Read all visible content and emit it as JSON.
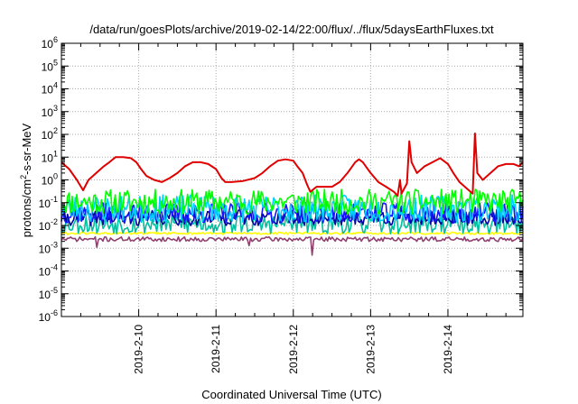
{
  "chart_data": {
    "type": "line",
    "title": "/data/run/goesPlots/archive/2019-02-14/22:00/flux/../flux/5daysEarthFluxes.txt",
    "xlabel": "Coordinated Universal Time (UTC)",
    "ylabel": "protons/cm²-s-sr-MeV",
    "ylabel_parts": [
      "protons/cm",
      "2",
      "-s-sr-MeV"
    ],
    "yscale": "log",
    "ylim": [
      1e-06,
      1000000.0
    ],
    "xlim": [
      0,
      5.97
    ],
    "grid": true,
    "y_ticks": [
      {
        "exp": -6,
        "label": "10",
        "sup": "-6"
      },
      {
        "exp": -5,
        "label": "10",
        "sup": "-5"
      },
      {
        "exp": -4,
        "label": "10",
        "sup": "-4"
      },
      {
        "exp": -3,
        "label": "10",
        "sup": "-3"
      },
      {
        "exp": -2,
        "label": "10",
        "sup": "-2"
      },
      {
        "exp": -1,
        "label": "10",
        "sup": "-1"
      },
      {
        "exp": 0,
        "label": "10",
        "sup": "0"
      },
      {
        "exp": 1,
        "label": "10",
        "sup": "1"
      },
      {
        "exp": 2,
        "label": "10",
        "sup": "2"
      },
      {
        "exp": 3,
        "label": "10",
        "sup": "3"
      },
      {
        "exp": 4,
        "label": "10",
        "sup": "4"
      },
      {
        "exp": 5,
        "label": "10",
        "sup": "5"
      },
      {
        "exp": 6,
        "label": "10",
        "sup": "6"
      }
    ],
    "x_ticks": [
      {
        "x": 1,
        "label": "2019-2-10"
      },
      {
        "x": 2,
        "label": "2019-2-11"
      },
      {
        "x": 3,
        "label": "2019-2-12"
      },
      {
        "x": 4,
        "label": "2019-2-13"
      },
      {
        "x": 5,
        "label": "2019-2-14"
      }
    ],
    "series": [
      {
        "color": "#e00000",
        "points": [
          [
            0.0,
            6
          ],
          [
            0.1,
            3
          ],
          [
            0.2,
            1.0
          ],
          [
            0.28,
            0.35
          ],
          [
            0.35,
            1.0
          ],
          [
            0.45,
            2
          ],
          [
            0.55,
            4
          ],
          [
            0.62,
            6
          ],
          [
            0.7,
            10
          ],
          [
            0.8,
            10
          ],
          [
            0.9,
            9
          ],
          [
            0.97,
            6
          ],
          [
            1.03,
            3
          ],
          [
            1.1,
            1.5
          ],
          [
            1.2,
            1.0
          ],
          [
            1.3,
            0.8
          ],
          [
            1.4,
            1.2
          ],
          [
            1.5,
            2
          ],
          [
            1.6,
            4
          ],
          [
            1.7,
            6
          ],
          [
            1.8,
            6
          ],
          [
            1.9,
            5
          ],
          [
            2.0,
            3
          ],
          [
            2.07,
            1.2
          ],
          [
            2.12,
            0.8
          ],
          [
            2.2,
            0.8
          ],
          [
            2.35,
            0.9
          ],
          [
            2.5,
            1.2
          ],
          [
            2.6,
            2
          ],
          [
            2.7,
            4
          ],
          [
            2.8,
            7
          ],
          [
            2.9,
            8
          ],
          [
            3.0,
            7
          ],
          [
            3.05,
            4
          ],
          [
            3.12,
            2
          ],
          [
            3.18,
            0.6
          ],
          [
            3.22,
            0.3
          ],
          [
            3.3,
            0.5
          ],
          [
            3.4,
            0.5
          ],
          [
            3.5,
            0.5
          ],
          [
            3.6,
            0.8
          ],
          [
            3.7,
            2
          ],
          [
            3.8,
            6
          ],
          [
            3.85,
            8
          ],
          [
            3.9,
            6
          ],
          [
            4.0,
            2
          ],
          [
            4.1,
            0.8
          ],
          [
            4.2,
            0.5
          ],
          [
            4.3,
            0.3
          ],
          [
            4.35,
            0.2
          ],
          [
            4.38,
            1.0
          ],
          [
            4.4,
            0.25
          ],
          [
            4.47,
            0.7
          ],
          [
            4.5,
            50
          ],
          [
            4.53,
            6
          ],
          [
            4.6,
            2
          ],
          [
            4.7,
            4
          ],
          [
            4.8,
            6
          ],
          [
            4.9,
            9
          ],
          [
            5.0,
            5
          ],
          [
            5.07,
            2
          ],
          [
            5.15,
            0.8
          ],
          [
            5.25,
            0.4
          ],
          [
            5.32,
            0.25
          ],
          [
            5.35,
            110
          ],
          [
            5.38,
            2
          ],
          [
            5.45,
            1.0
          ],
          [
            5.55,
            2
          ],
          [
            5.65,
            4
          ],
          [
            5.75,
            5
          ],
          [
            5.85,
            5
          ],
          [
            5.92,
            4
          ],
          [
            5.97,
            6
          ]
        ]
      },
      {
        "color": "#00ff00",
        "base": 0.11,
        "amp": 0.55,
        "seed": 11
      },
      {
        "color": "#00d0ff",
        "base": 0.055,
        "amp": 0.6,
        "seed": 23
      },
      {
        "color": "#1414ff",
        "base": 0.035,
        "amp": 0.45,
        "seed": 37
      },
      {
        "color": "#0000a0",
        "base": 0.022,
        "amp": 0.35,
        "seed": 41
      },
      {
        "color": "#00c0a0",
        "base": 0.012,
        "amp": 0.45,
        "seed": 53
      },
      {
        "color": "#ffff00",
        "base": 0.0045,
        "amp": 0.05,
        "seed": 61
      },
      {
        "color": "#904070",
        "base": 0.0025,
        "amp": 0.1,
        "seed": 71,
        "dips": [
          [
            0.45,
            0.0011
          ],
          [
            2.42,
            0.0013
          ],
          [
            3.25,
            0.0005
          ]
        ]
      }
    ]
  }
}
